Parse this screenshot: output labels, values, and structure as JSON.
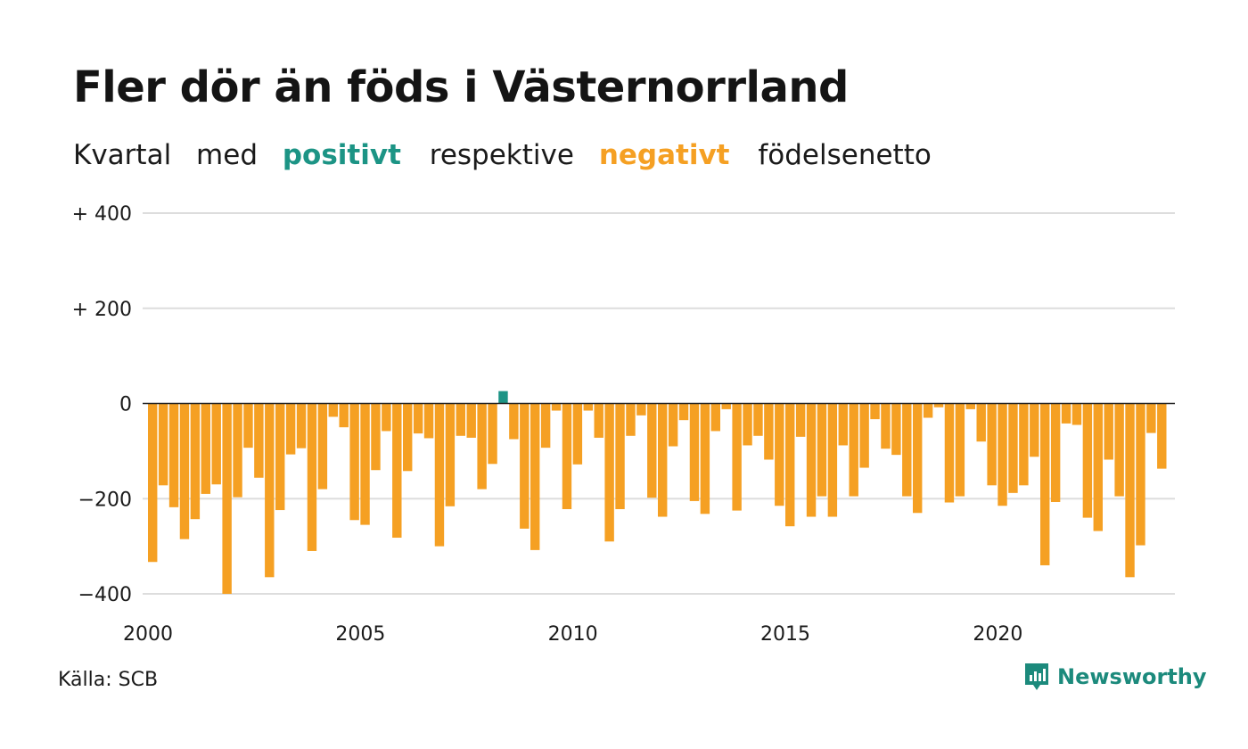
{
  "title": "Fler dör än föds i Västernorrland",
  "subtitle": {
    "part1": "Kvartal",
    "part2": "med",
    "positive": "positivt",
    "part3": "respektive",
    "negative": "negativt",
    "part4": "födelsenetto"
  },
  "colors": {
    "positive": "#1c9485",
    "negative": "#f5a023",
    "grid": "#dddddd",
    "zero_line": "#222222"
  },
  "source": "Källa: SCB",
  "brand": "Newsworthy",
  "brand_icon": "newsworthy-logo-icon",
  "chart_data": {
    "type": "bar",
    "title": "Fler dör än föds i Västernorrland",
    "xlabel": "",
    "ylabel": "",
    "x_ticks": [
      "2000",
      "2005",
      "2010",
      "2015",
      "2020"
    ],
    "y_ticks": [
      {
        "value": 400,
        "label": "+ 400"
      },
      {
        "value": 200,
        "label": "+ 200"
      },
      {
        "value": 0,
        "label": "0"
      },
      {
        "value": -200,
        "label": "−200"
      },
      {
        "value": -400,
        "label": "−400"
      }
    ],
    "ylim": [
      -400,
      400
    ],
    "start_year": 2000,
    "grid": true,
    "values": [
      -333,
      -172,
      -218,
      -285,
      -243,
      -190,
      -170,
      -400,
      -197,
      -93,
      -156,
      -365,
      -224,
      -107,
      -94,
      -310,
      -180,
      -28,
      -50,
      -245,
      -255,
      -140,
      -58,
      -282,
      -142,
      -63,
      -73,
      -300,
      -216,
      -68,
      -72,
      -180,
      -127,
      26,
      -75,
      -263,
      -308,
      -93,
      -15,
      -222,
      -128,
      -15,
      -72,
      -290,
      -222,
      -68,
      -25,
      -198,
      -238,
      -90,
      -35,
      -205,
      -232,
      -58,
      -12,
      -225,
      -88,
      -68,
      -118,
      -215,
      -258,
      -70,
      -238,
      -195,
      -238,
      -88,
      -195,
      -135,
      -33,
      -95,
      -108,
      -195,
      -230,
      -30,
      -8,
      -208,
      -195,
      -12,
      -80,
      -172,
      -215,
      -188,
      -172,
      -112,
      -340,
      -207,
      -42,
      -45,
      -240,
      -268,
      -118,
      -195,
      -365,
      -298,
      -62,
      -137
    ]
  }
}
